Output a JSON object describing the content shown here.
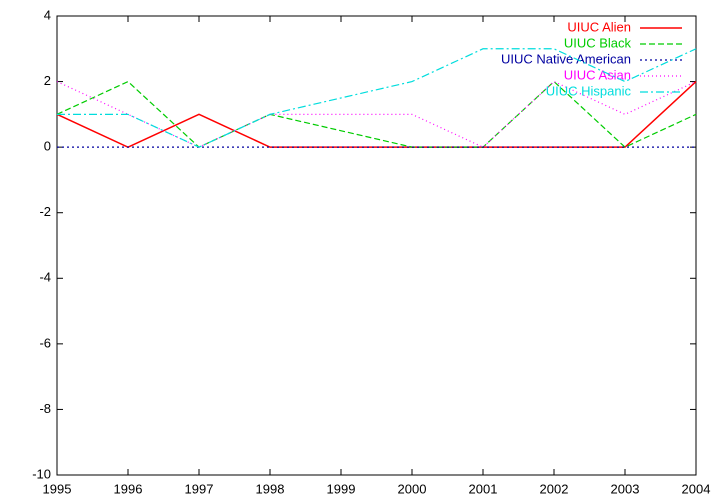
{
  "chart_data": {
    "type": "line",
    "x": [
      1995,
      1996,
      1997,
      1998,
      2000,
      2001,
      2002,
      2003,
      2004
    ],
    "series": [
      {
        "name": "UIUC Alien",
        "color": "#ff0000",
        "values": [
          1,
          0,
          1,
          0,
          0,
          0,
          0,
          0,
          2
        ]
      },
      {
        "name": "UIUC Black",
        "color": "#00cc00",
        "values": [
          1,
          2,
          0,
          1,
          0,
          0,
          2,
          0,
          1
        ]
      },
      {
        "name": "UIUC Native American",
        "color": "#0000a0",
        "values": [
          0,
          0,
          0,
          0,
          0,
          0,
          0,
          0,
          0
        ]
      },
      {
        "name": "UIUC Asian",
        "color": "#ff00ff",
        "values": [
          2,
          1,
          0,
          1,
          1,
          0,
          2,
          1,
          2
        ]
      },
      {
        "name": "UIUC Hispanic",
        "color": "#00dddd",
        "values": [
          1,
          1,
          0,
          1,
          2,
          3,
          3,
          2,
          3
        ]
      }
    ],
    "xlim": [
      1995,
      2004
    ],
    "xticks": [
      1995,
      1996,
      1997,
      1998,
      1999,
      2000,
      2001,
      2002,
      2003,
      2004
    ],
    "ylim": [
      -10,
      4
    ],
    "yticks": [
      -10,
      -8,
      -6,
      -4,
      -2,
      0,
      2,
      4
    ],
    "legend": "top-right",
    "grid": false
  }
}
